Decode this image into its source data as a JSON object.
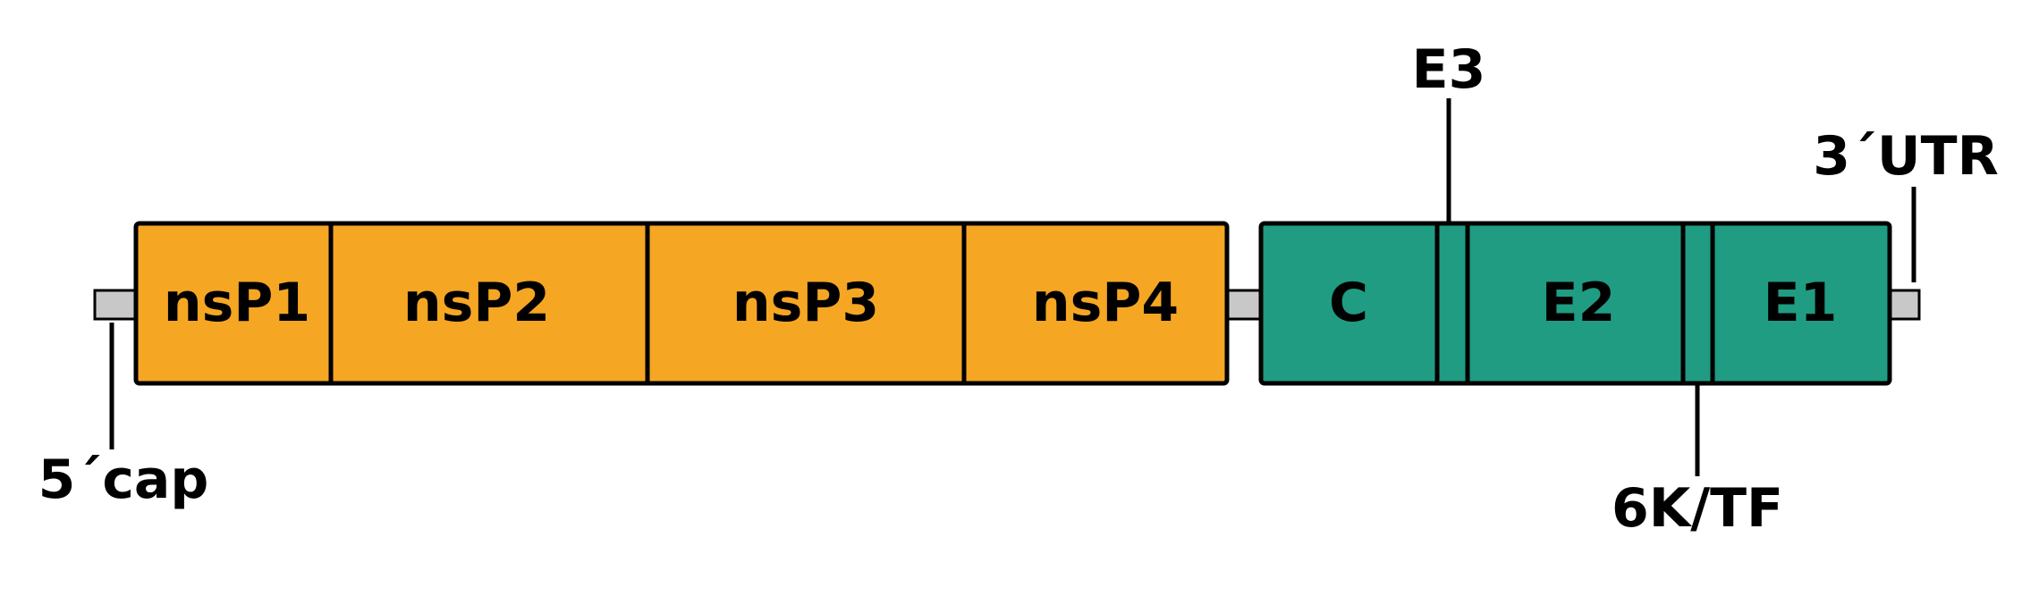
{
  "colors": {
    "nonstructural": "#F5A623",
    "structural": "#1F9C82",
    "utr": "#C8C8C8",
    "outline": "#000000"
  },
  "nonstructural": {
    "nsp1": "nsP1",
    "nsp2": "nsP2",
    "nsp3": "nsP3",
    "nsp4": "nsP4"
  },
  "structural": {
    "c": "C",
    "e2": "E2",
    "e1": "E1"
  },
  "callouts": {
    "e3": "E3",
    "six_k_tf": "6K/TF",
    "five_cap": "5´cap",
    "three_utr": "3´UTR"
  }
}
